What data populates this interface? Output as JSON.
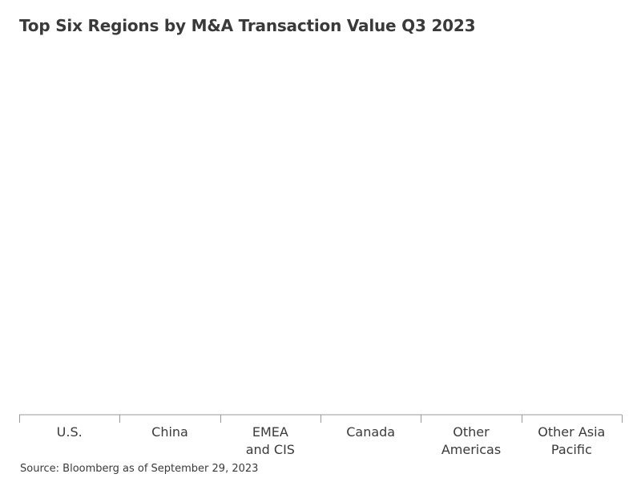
{
  "chart_data": {
    "type": "bar",
    "title": "Top Six Regions by M&A Transaction Value Q3 2023",
    "categories": [
      [
        "U.S."
      ],
      [
        "China"
      ],
      [
        "EMEA",
        "and CIS"
      ],
      [
        "Canada"
      ],
      [
        "Other",
        "Americas"
      ],
      [
        "Other Asia",
        "Pacific"
      ]
    ],
    "xlabel": "",
    "ylabel": "",
    "legend": "none",
    "grid": false,
    "colors": {
      "text": "#3a3a3a",
      "axis": "#999999"
    }
  },
  "footer": {
    "source": "Source: Bloomberg as of September 29, 2023"
  }
}
